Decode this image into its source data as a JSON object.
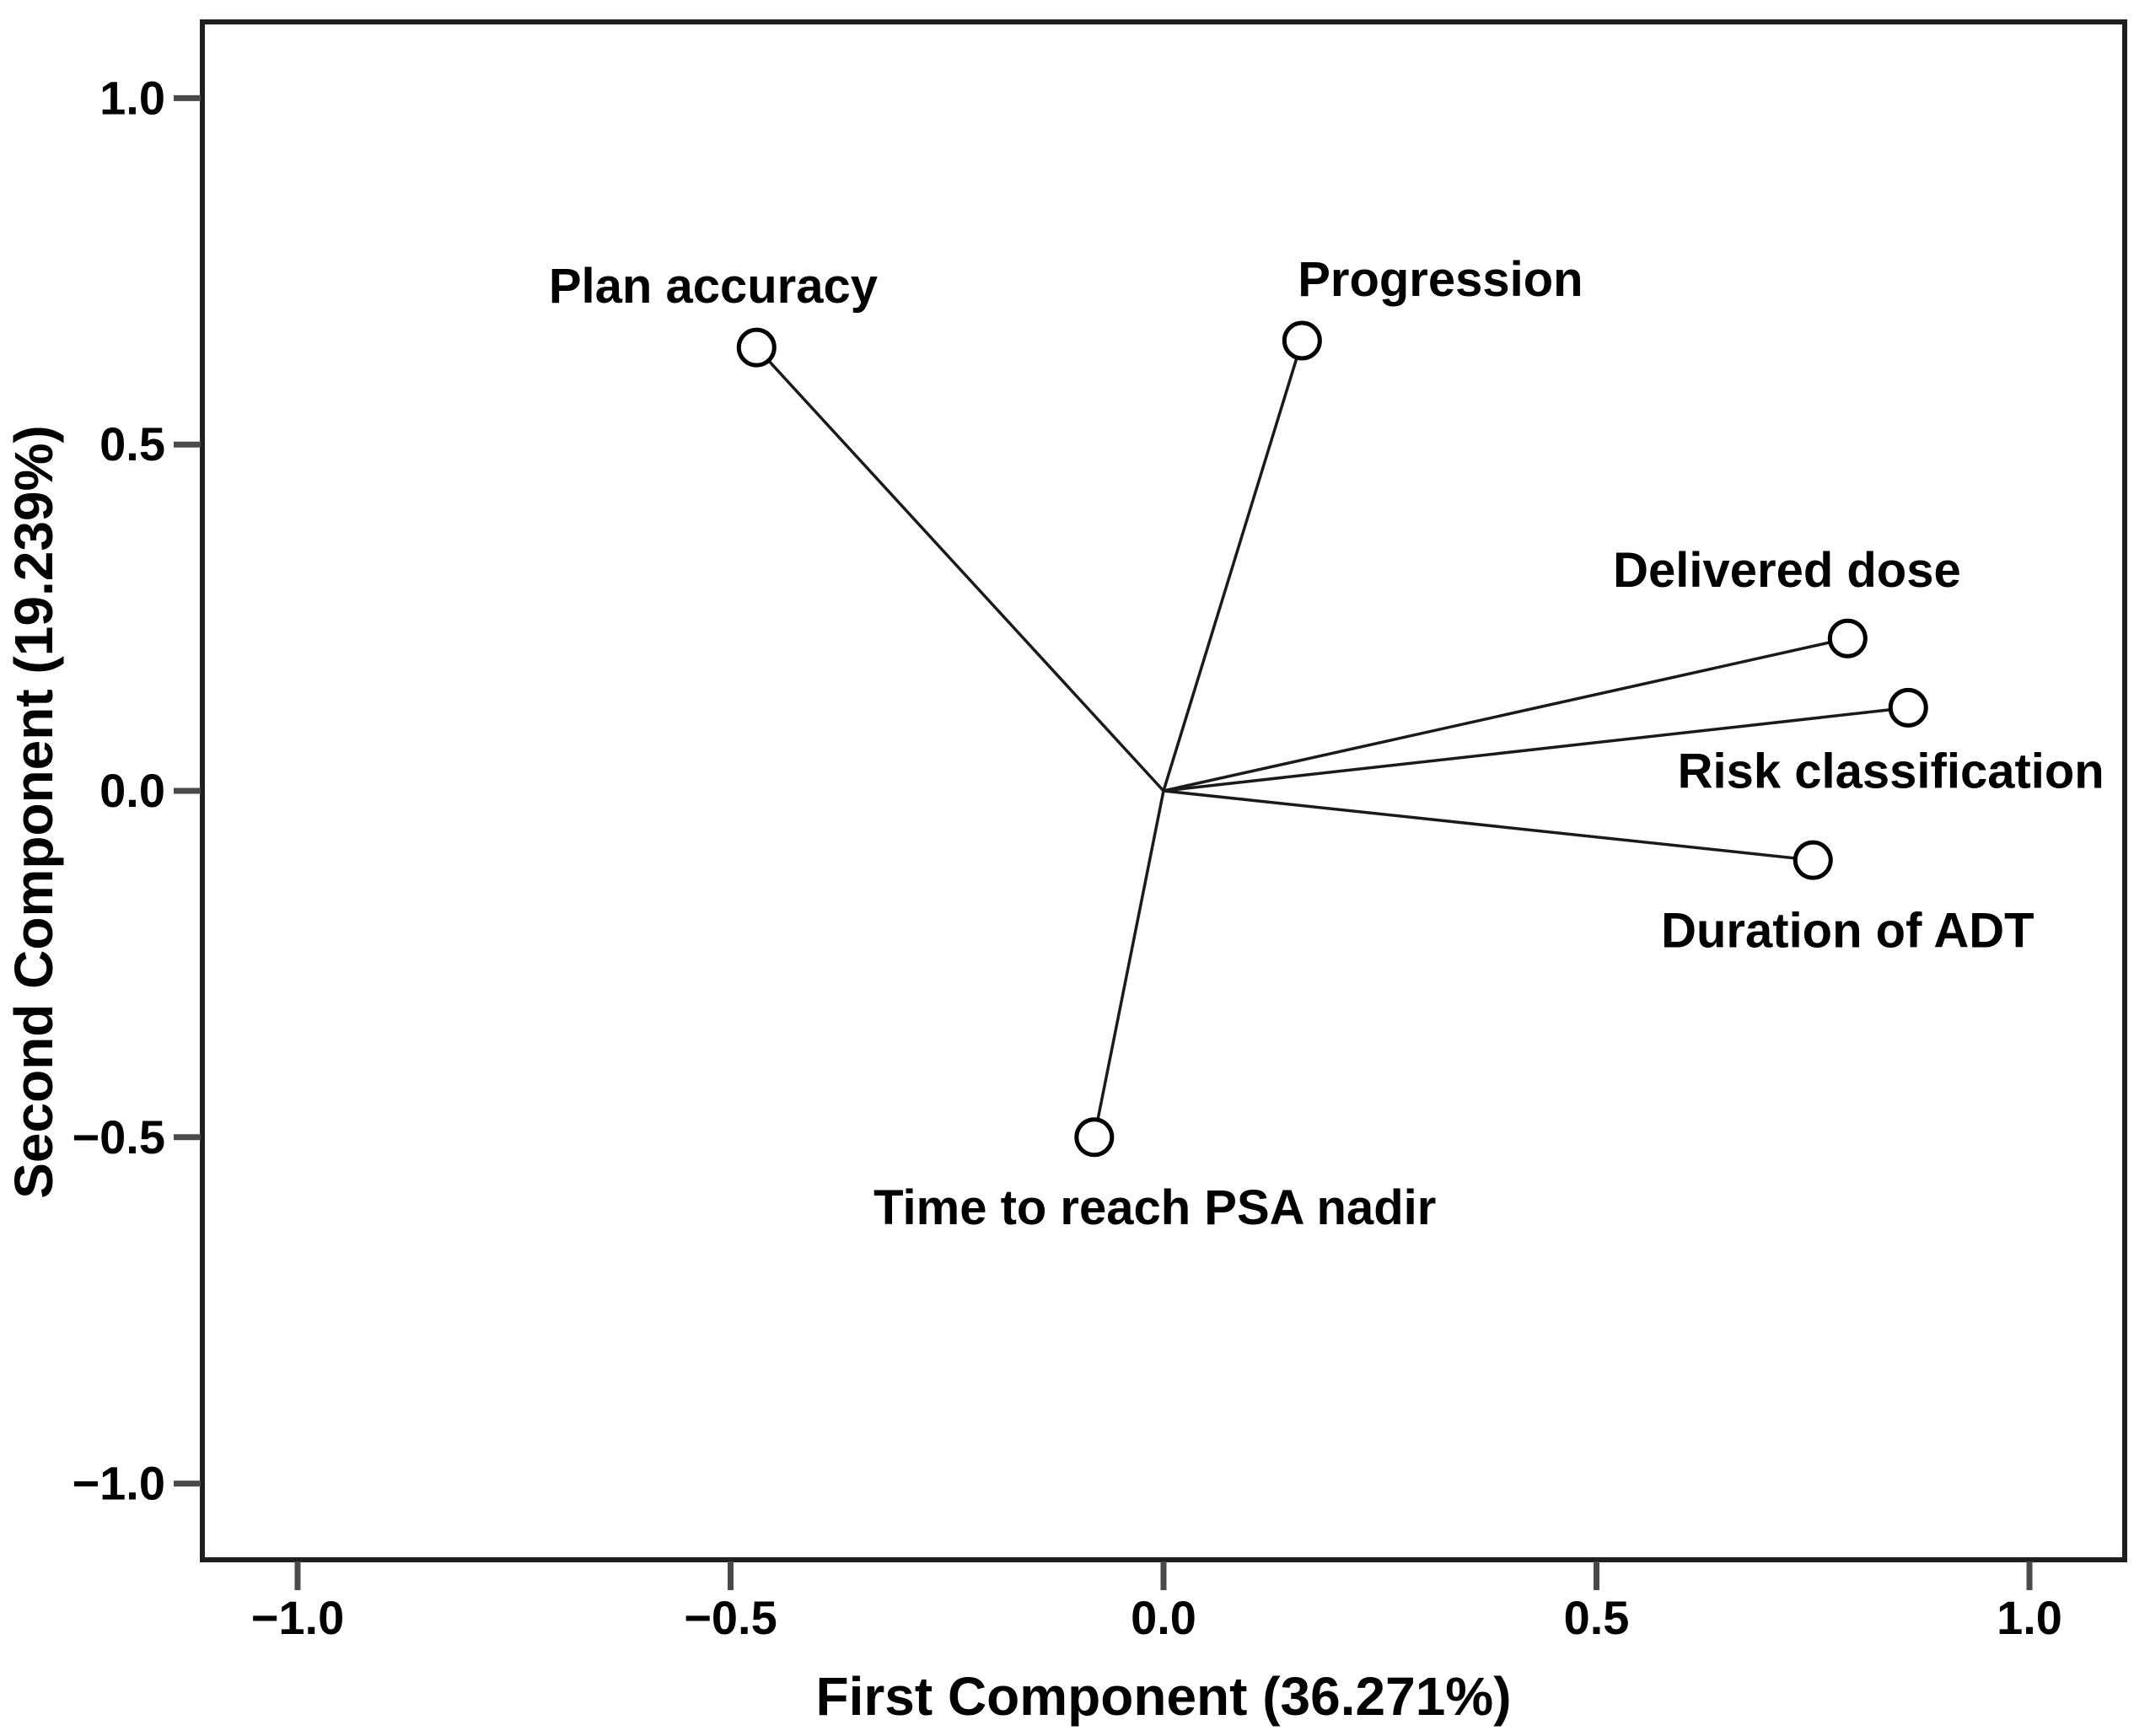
{
  "chart_data": {
    "type": "scatter",
    "subtype": "pca-component-loading-plot",
    "vectors_from_origin": true,
    "title": "",
    "xlabel": "First Component (36.271%)",
    "ylabel": "Second Component (19.239%)",
    "xlim": [
      -1.11,
      1.11
    ],
    "ylim": [
      -1.11,
      1.11
    ],
    "x_ticks": [
      -1.0,
      -0.5,
      0.0,
      0.5,
      1.0
    ],
    "x_tick_labels": [
      "−1.0",
      "−0.5",
      "0.0",
      "0.5",
      "1.0"
    ],
    "y_ticks": [
      1.0,
      0.5,
      0.0,
      -0.5,
      -1.0
    ],
    "y_tick_labels": [
      "1.0",
      "0.5",
      "0.0",
      "−0.5",
      "−1.0"
    ],
    "grid": false,
    "legend": "none",
    "marker": "open-circle",
    "line_color": "#1a1a1a",
    "frame_color": "#1f1f1f",
    "tick_color": "#4a4a4a",
    "points": [
      {
        "label": "Plan accuracy",
        "x": -0.47,
        "y": 0.64,
        "label_x": -0.52,
        "label_y": 0.73,
        "label_anchor": "middle"
      },
      {
        "label": "Progression",
        "x": 0.16,
        "y": 0.65,
        "label_x": 0.155,
        "label_y": 0.74,
        "label_anchor": "start"
      },
      {
        "label": "Delivered dose",
        "x": 0.79,
        "y": 0.22,
        "label_x": 0.72,
        "label_y": 0.32,
        "label_anchor": "middle"
      },
      {
        "label": "Risk classification",
        "x": 0.86,
        "y": 0.12,
        "label_x": 0.84,
        "label_y": 0.03,
        "label_anchor": "middle"
      },
      {
        "label": "Duration of ADT",
        "x": 0.75,
        "y": -0.1,
        "label_x": 0.79,
        "label_y": -0.2,
        "label_anchor": "middle"
      },
      {
        "label": "Time to reach PSA nadir",
        "x": -0.08,
        "y": -0.5,
        "label_x": -0.01,
        "label_y": -0.6,
        "label_anchor": "middle"
      }
    ]
  }
}
